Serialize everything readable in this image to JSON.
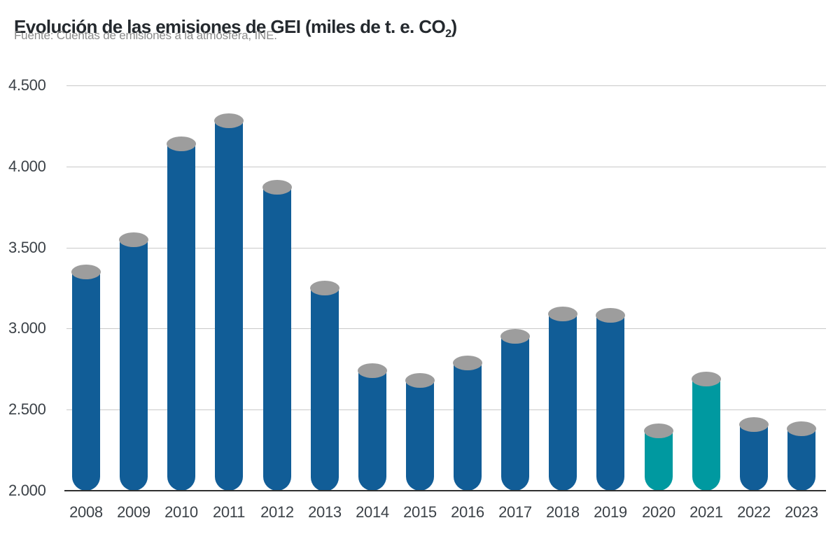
{
  "header": {
    "title_prefix": "Evolución de las emisiones de GEI (miles de t. e. CO",
    "title_sub": "2",
    "title_suffix": ")",
    "source": "Fuente: Cuentas de emisiones a la atmósfera, INE."
  },
  "chart_data": {
    "type": "bar",
    "title": "Evolución de las emisiones de GEI (miles de t. e. CO2)",
    "source": "Fuente: Cuentas de emisiones a la atmósfera, INE.",
    "xlabel": "",
    "ylabel": "miles de t. e. CO2",
    "categories": [
      "2008",
      "2009",
      "2010",
      "2011",
      "2012",
      "2013",
      "2014",
      "2015",
      "2016",
      "2017",
      "2018",
      "2019",
      "2020",
      "2021",
      "2022",
      "2023"
    ],
    "values": [
      3350,
      3550,
      4140,
      4280,
      3870,
      3250,
      2740,
      2680,
      2790,
      2950,
      3090,
      3080,
      2370,
      2690,
      2410,
      2380
    ],
    "highlighted_categories": [
      "2020",
      "2021"
    ],
    "ylim": [
      2000,
      4500
    ],
    "yticks": [
      {
        "value": 4500,
        "label": "4.500"
      },
      {
        "value": 4000,
        "label": "4.000"
      },
      {
        "value": 3500,
        "label": "3.500"
      },
      {
        "value": 3000,
        "label": "3.000"
      },
      {
        "value": 2500,
        "label": "2.500"
      },
      {
        "value": 2000,
        "label": "2.000"
      }
    ],
    "grid": true,
    "legend": false,
    "bar_style": "cylinder-3d",
    "colors": {
      "bar": "#115d97",
      "highlight": "#0099a0",
      "cap": "#9d9d9d",
      "gridline": "#c9c9c9",
      "axis_line": "#2f2f2f",
      "tick_text": "#3c4248",
      "title_text": "#24292e",
      "source_text": "#8c8c8c"
    }
  }
}
